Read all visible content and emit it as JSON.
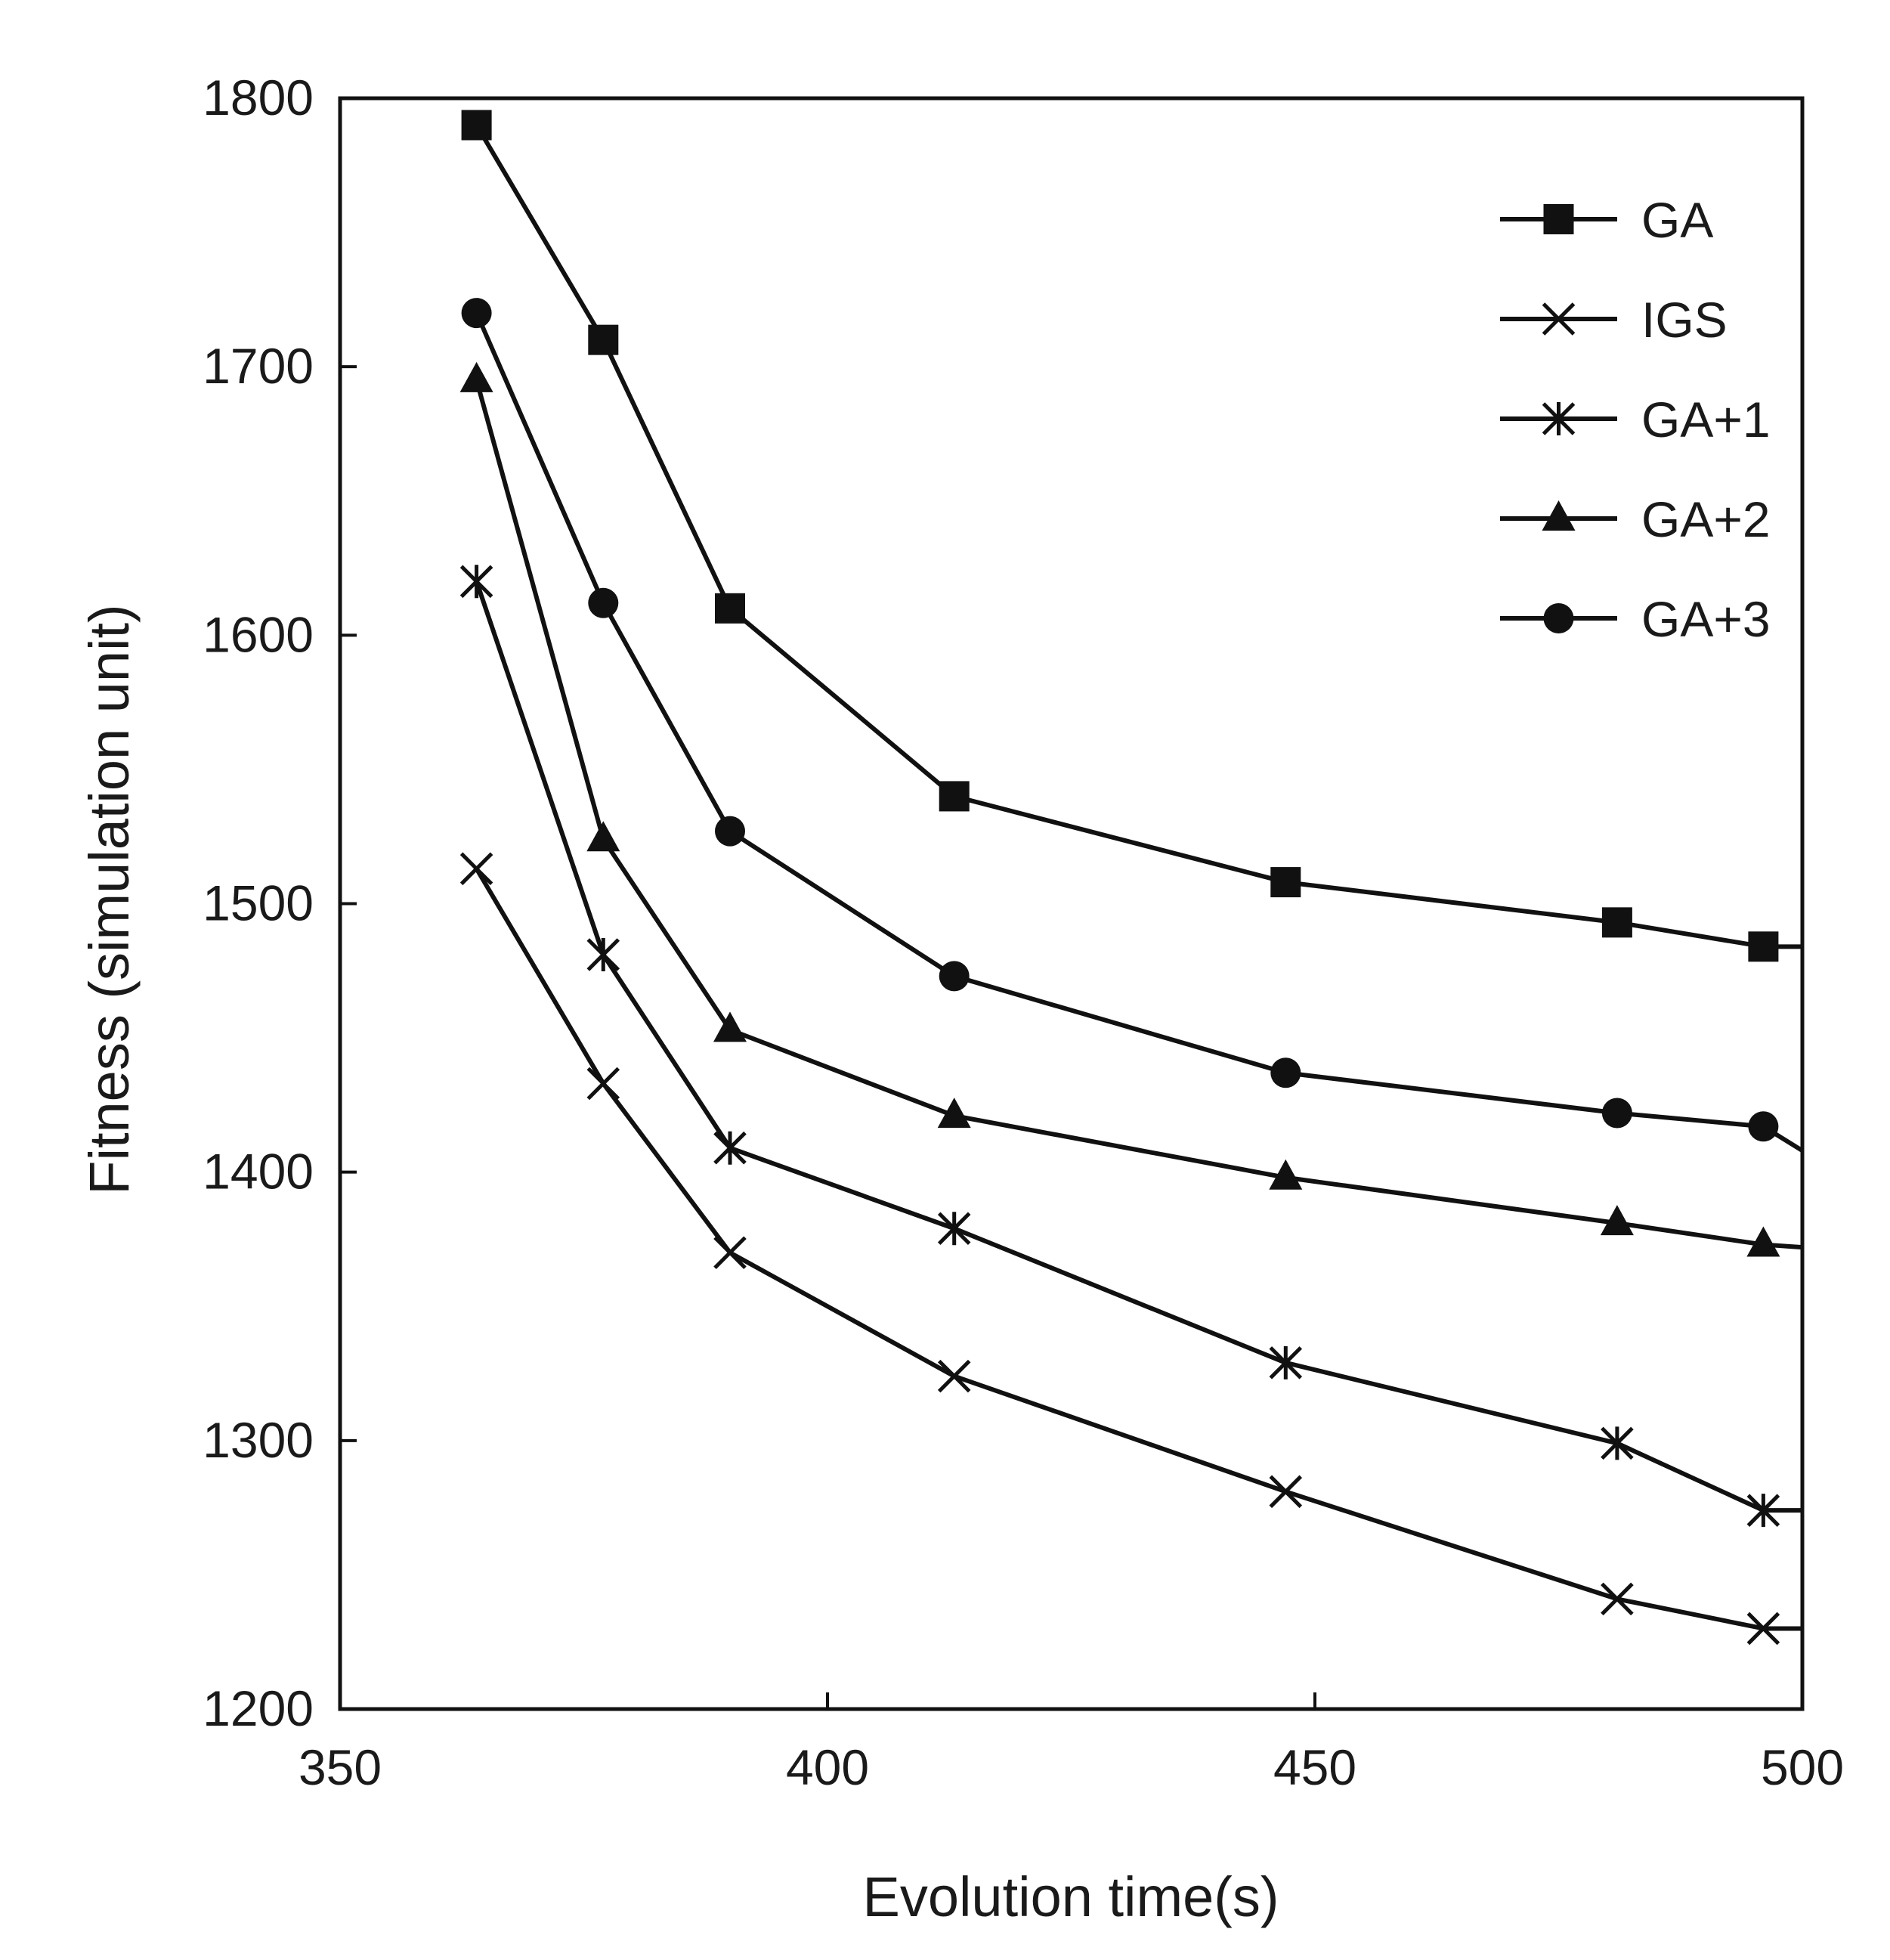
{
  "chart_data": {
    "type": "line",
    "title": "",
    "xlabel": "Evolution time(s)",
    "ylabel": "Fitness (simulation unit)",
    "xlim": [
      350,
      500
    ],
    "ylim": [
      1200,
      1800
    ],
    "xticks": [
      350,
      400,
      450,
      500
    ],
    "yticks": [
      1200,
      1300,
      1400,
      1500,
      1600,
      1700,
      1800
    ],
    "xtick_labels": [
      "350",
      "400",
      "450",
      "500"
    ],
    "ytick_labels": [
      "1200",
      "1300",
      "1400",
      "1500",
      "1600",
      "1700",
      "1800"
    ],
    "grid": false,
    "legend_position": "top-right",
    "x": [
      364,
      377,
      390,
      413,
      447,
      481,
      496,
      500
    ],
    "series": [
      {
        "name": "GA",
        "marker": "square",
        "values": [
          1790,
          1710,
          1610,
          1540,
          1508,
          1493,
          1484,
          1484
        ]
      },
      {
        "name": "IGS",
        "marker": "x",
        "values": [
          1513,
          1433,
          1370,
          1324,
          1281,
          1241,
          1230,
          1230
        ]
      },
      {
        "name": "GA+1",
        "marker": "asterisk",
        "values": [
          1620,
          1481,
          1409,
          1379,
          1329,
          1299,
          1274,
          1274
        ]
      },
      {
        "name": "GA+2",
        "marker": "triangle",
        "values": [
          1695,
          1524,
          1453,
          1421,
          1398,
          1381,
          1373,
          1372
        ]
      },
      {
        "name": "GA+3",
        "marker": "circle",
        "values": [
          1720,
          1612,
          1527,
          1473,
          1437,
          1422,
          1417,
          1408
        ]
      }
    ],
    "line_color": "#111111"
  }
}
